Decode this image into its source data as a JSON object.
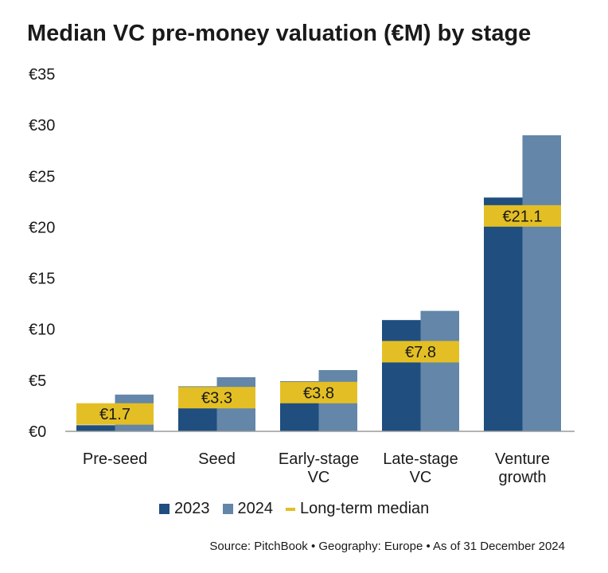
{
  "colors": {
    "series_2023": "#1f4e7f",
    "series_2024": "#6386a9",
    "median": "#e3bf25",
    "axis": "#9a9a9a"
  },
  "chart_data": {
    "type": "bar",
    "title": "Median VC pre-money valuation (€M) by stage",
    "categories": [
      "Pre-seed",
      "Seed",
      "Early-stage VC",
      "Late-stage VC",
      "Venture growth"
    ],
    "category_lines": [
      [
        "Pre-seed"
      ],
      [
        "Seed"
      ],
      [
        "Early-stage",
        "VC"
      ],
      [
        "Late-stage",
        "VC"
      ],
      [
        "Venture",
        "growth"
      ]
    ],
    "series": [
      {
        "name": "2023",
        "values": [
          0.6,
          4.4,
          4.9,
          10.9,
          22.9
        ]
      },
      {
        "name": "2024",
        "values": [
          3.6,
          5.3,
          6.0,
          11.8,
          29.0
        ]
      }
    ],
    "long_term_median": {
      "name": "Long-term median",
      "values": [
        1.7,
        3.3,
        3.8,
        7.8,
        21.1
      ],
      "labels": [
        "€1.7",
        "€3.3",
        "€3.8",
        "€7.8",
        "€21.1"
      ]
    },
    "ylim": [
      0,
      35
    ],
    "yticks": [
      0,
      5,
      10,
      15,
      20,
      25,
      30,
      35
    ],
    "ytick_labels": [
      "€0",
      "€5",
      "€10",
      "€15",
      "€20",
      "€25",
      "€30",
      "€35"
    ],
    "legend_position": "bottom"
  },
  "source": "Source: PitchBook • Geography: Europe • As of 31 December 2024"
}
